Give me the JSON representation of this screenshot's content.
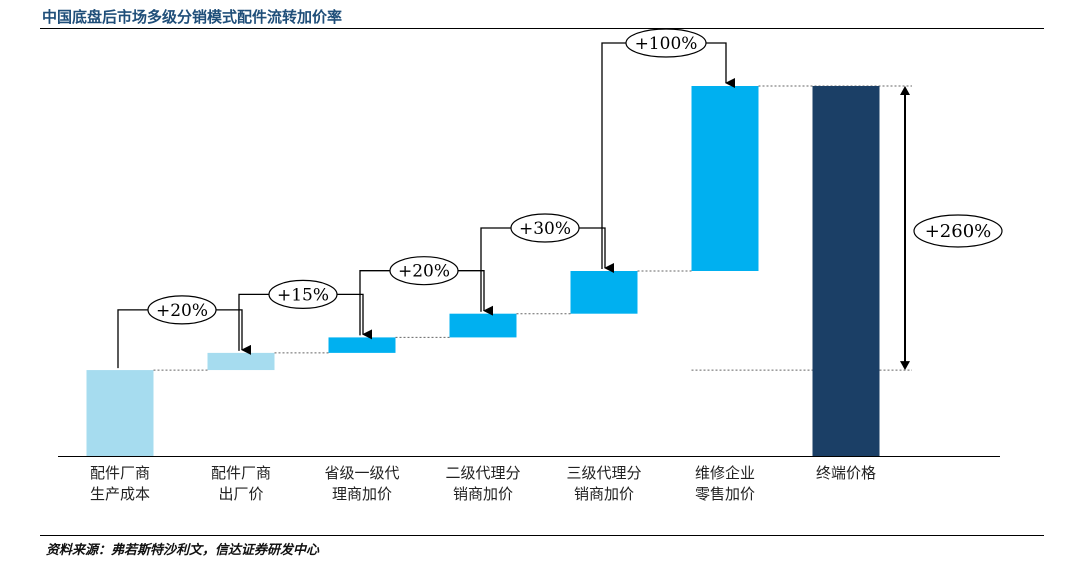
{
  "header": {
    "title": "中国底盘后市场多级分销模式配件流转加价率"
  },
  "chart_data": {
    "type": "bar",
    "subtype": "waterfall",
    "categories": [
      [
        "配件厂商",
        "生产成本"
      ],
      [
        "配件厂商",
        "出厂价"
      ],
      [
        "省级一级代",
        "理商加价"
      ],
      [
        "二级代理分",
        "销商加价"
      ],
      [
        "三级代理分",
        "销商加价"
      ],
      [
        "维修企业",
        "零售加价"
      ],
      [
        "终端价格"
      ]
    ],
    "base": 100,
    "markups": [
      "+20%",
      "+15%",
      "+20%",
      "+30%",
      "+100%"
    ],
    "total_label": "+260%",
    "colors": {
      "step_light": "#a6dcef",
      "step_mid": "#00b0f0",
      "total": "#1b3f66"
    }
  },
  "footer": {
    "source": "资料来源：弗若斯特沙利文，信达证券研发中心"
  }
}
